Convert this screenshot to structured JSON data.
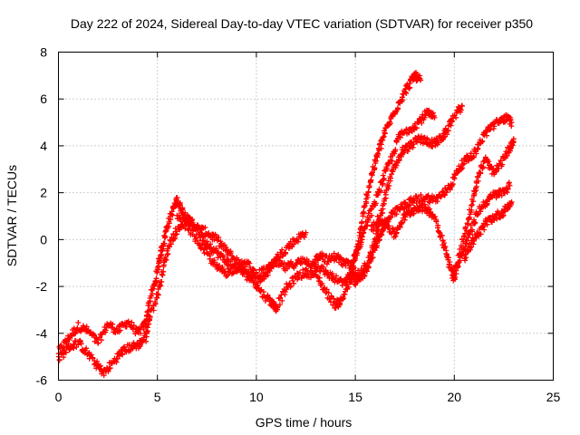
{
  "chart_data": {
    "type": "scatter",
    "title": "Day 222 of 2024, Sidereal Day-to-day VTEC variation (SDTVAR) for receiver p350",
    "xlabel": "GPS time / hours",
    "ylabel": "SDTVAR / TECUs",
    "xlim": [
      0,
      25
    ],
    "ylim": [
      -6,
      8
    ],
    "xticks": [
      0,
      5,
      10,
      15,
      20,
      25
    ],
    "yticks": [
      -6,
      -4,
      -2,
      0,
      2,
      4,
      6,
      8
    ],
    "grid": true,
    "marker": "+",
    "color": "#ff0000",
    "series": [
      {
        "name": "track-1",
        "points": [
          [
            0,
            -4.8
          ],
          [
            0.5,
            -4.2
          ],
          [
            1.0,
            -3.7
          ],
          [
            1.5,
            -3.9
          ],
          [
            2.0,
            -4.4
          ],
          [
            2.5,
            -3.6
          ],
          [
            3.0,
            -3.9
          ],
          [
            3.5,
            -3.5
          ],
          [
            4.0,
            -4.0
          ],
          [
            4.4,
            -3.6
          ],
          [
            4.6,
            -2.6
          ],
          [
            4.9,
            -1.8
          ],
          [
            5.1,
            -0.8
          ],
          [
            5.3,
            -0.2
          ],
          [
            5.5,
            0.6
          ],
          [
            5.8,
            1.3
          ],
          [
            6.0,
            1.7
          ],
          [
            6.2,
            1.3
          ],
          [
            6.5,
            0.9
          ],
          [
            7.0,
            0.5
          ],
          [
            7.5,
            0.3
          ],
          [
            8.0,
            0.0
          ],
          [
            8.5,
            -0.5
          ],
          [
            9.0,
            -0.9
          ],
          [
            9.5,
            -1.3
          ],
          [
            10.0,
            -1.8
          ],
          [
            10.5,
            -1.5
          ],
          [
            11.0,
            -0.8
          ],
          [
            11.5,
            -0.4
          ],
          [
            12.0,
            0.0
          ],
          [
            12.5,
            0.3
          ]
        ]
      },
      {
        "name": "track-2",
        "points": [
          [
            0,
            -5.1
          ],
          [
            0.5,
            -4.6
          ],
          [
            1.0,
            -4.4
          ],
          [
            1.5,
            -4.9
          ],
          [
            2.0,
            -5.4
          ],
          [
            2.3,
            -5.7
          ],
          [
            2.8,
            -5.2
          ],
          [
            3.2,
            -4.8
          ],
          [
            3.6,
            -4.6
          ],
          [
            4.0,
            -4.5
          ],
          [
            4.4,
            -4.2
          ],
          [
            4.6,
            -3.3
          ],
          [
            5.0,
            -2.4
          ],
          [
            5.3,
            -1.2
          ],
          [
            5.6,
            -0.2
          ],
          [
            6.0,
            0.4
          ],
          [
            6.4,
            0.8
          ],
          [
            6.8,
            0.7
          ],
          [
            7.3,
            0.1
          ],
          [
            7.8,
            -0.4
          ],
          [
            8.3,
            -0.8
          ],
          [
            8.8,
            -1.1
          ],
          [
            9.3,
            -1.4
          ],
          [
            9.8,
            -1.7
          ],
          [
            10.3,
            -2.3
          ],
          [
            10.8,
            -2.7
          ],
          [
            11.0,
            -2.9
          ],
          [
            11.5,
            -2.1
          ],
          [
            12.0,
            -1.6
          ],
          [
            12.5,
            -1.4
          ],
          [
            13.0,
            -1.5
          ],
          [
            13.5,
            -2.2
          ],
          [
            14.0,
            -2.8
          ],
          [
            14.3,
            -2.6
          ],
          [
            14.8,
            -1.7
          ],
          [
            15.0,
            -0.8
          ],
          [
            15.3,
            0.6
          ],
          [
            15.6,
            1.9
          ],
          [
            15.9,
            3.0
          ],
          [
            16.2,
            3.8
          ],
          [
            16.5,
            4.6
          ],
          [
            16.9,
            5.3
          ],
          [
            17.3,
            6.0
          ],
          [
            17.7,
            6.6
          ],
          [
            18.0,
            7.0
          ],
          [
            18.3,
            6.8
          ]
        ]
      },
      {
        "name": "track-3",
        "points": [
          [
            6.0,
            0.9
          ],
          [
            6.5,
            0.6
          ],
          [
            7.0,
            0.0
          ],
          [
            7.5,
            -0.6
          ],
          [
            8.0,
            -1.2
          ],
          [
            8.5,
            -1.4
          ],
          [
            9.0,
            -1.2
          ],
          [
            9.5,
            -1.0
          ],
          [
            10.0,
            -1.5
          ],
          [
            10.5,
            -1.3
          ],
          [
            11.0,
            -1.0
          ],
          [
            11.5,
            -1.2
          ],
          [
            12.0,
            -1.0
          ],
          [
            12.5,
            -0.9
          ],
          [
            13.0,
            -1.1
          ],
          [
            13.5,
            -1.4
          ],
          [
            14.0,
            -1.7
          ],
          [
            14.5,
            -1.9
          ],
          [
            14.8,
            -1.4
          ],
          [
            15.0,
            -0.6
          ],
          [
            15.3,
            0.0
          ],
          [
            15.6,
            0.8
          ],
          [
            16.0,
            1.6
          ],
          [
            16.4,
            2.6
          ],
          [
            16.8,
            3.4
          ],
          [
            17.2,
            4.4
          ],
          [
            17.7,
            4.7
          ],
          [
            18.2,
            5.0
          ],
          [
            18.6,
            5.4
          ],
          [
            19.0,
            5.2
          ]
        ]
      },
      {
        "name": "track-4",
        "points": [
          [
            12.8,
            -1.2
          ],
          [
            13.2,
            -0.6
          ],
          [
            13.6,
            -0.9
          ],
          [
            14.0,
            -0.7
          ],
          [
            14.4,
            -1.0
          ],
          [
            14.8,
            -1.1
          ],
          [
            15.2,
            -1.6
          ],
          [
            15.6,
            -1.0
          ],
          [
            16.0,
            -0.1
          ],
          [
            16.3,
            1.0
          ],
          [
            16.6,
            2.2
          ],
          [
            17.0,
            3.1
          ],
          [
            17.4,
            3.8
          ],
          [
            17.8,
            4.0
          ],
          [
            18.2,
            4.3
          ],
          [
            18.6,
            4.2
          ],
          [
            19.0,
            4.1
          ],
          [
            19.3,
            4.3
          ],
          [
            19.6,
            4.6
          ],
          [
            20.0,
            5.3
          ],
          [
            20.4,
            5.7
          ]
        ]
      },
      {
        "name": "track-5",
        "points": [
          [
            14.6,
            -1.6
          ],
          [
            15.0,
            -1.8
          ],
          [
            15.4,
            -1.5
          ],
          [
            15.8,
            -0.8
          ],
          [
            16.1,
            -0.1
          ],
          [
            16.4,
            0.5
          ],
          [
            16.8,
            1.0
          ],
          [
            17.2,
            1.3
          ],
          [
            17.6,
            1.5
          ],
          [
            18.0,
            1.7
          ],
          [
            18.5,
            1.8
          ],
          [
            19.0,
            1.7
          ],
          [
            19.4,
            1.9
          ],
          [
            19.8,
            2.3
          ],
          [
            20.2,
            3.0
          ],
          [
            20.6,
            3.4
          ],
          [
            21.0,
            3.7
          ],
          [
            21.4,
            4.3
          ],
          [
            21.8,
            4.8
          ],
          [
            22.2,
            5.0
          ],
          [
            22.6,
            5.2
          ],
          [
            22.9,
            5.0
          ]
        ]
      },
      {
        "name": "track-6",
        "points": [
          [
            15.8,
            0.4
          ],
          [
            16.2,
            0.9
          ],
          [
            16.6,
            0.6
          ],
          [
            17.0,
            0.2
          ],
          [
            17.4,
            0.9
          ],
          [
            17.8,
            1.2
          ],
          [
            18.2,
            1.4
          ],
          [
            18.6,
            1.3
          ],
          [
            19.0,
            1.0
          ],
          [
            19.4,
            0.0
          ],
          [
            19.7,
            -0.9
          ],
          [
            20.0,
            -1.6
          ],
          [
            20.4,
            -0.6
          ],
          [
            20.8,
            0.3
          ],
          [
            21.2,
            1.2
          ],
          [
            21.6,
            1.6
          ],
          [
            22.0,
            1.9
          ],
          [
            22.4,
            2.0
          ],
          [
            22.8,
            2.3
          ]
        ]
      },
      {
        "name": "track-7",
        "points": [
          [
            19.9,
            -1.8
          ],
          [
            20.3,
            -0.4
          ],
          [
            20.7,
            0.8
          ],
          [
            21.0,
            2.0
          ],
          [
            21.3,
            2.9
          ],
          [
            21.6,
            3.4
          ],
          [
            22.0,
            2.8
          ],
          [
            22.4,
            3.3
          ],
          [
            22.8,
            3.9
          ],
          [
            23.0,
            4.3
          ]
        ]
      },
      {
        "name": "track-8",
        "points": [
          [
            20.5,
            -0.8
          ],
          [
            20.9,
            -0.1
          ],
          [
            21.3,
            0.3
          ],
          [
            21.7,
            0.8
          ],
          [
            22.1,
            1.0
          ],
          [
            22.5,
            1.2
          ],
          [
            22.9,
            1.6
          ]
        ]
      }
    ]
  }
}
